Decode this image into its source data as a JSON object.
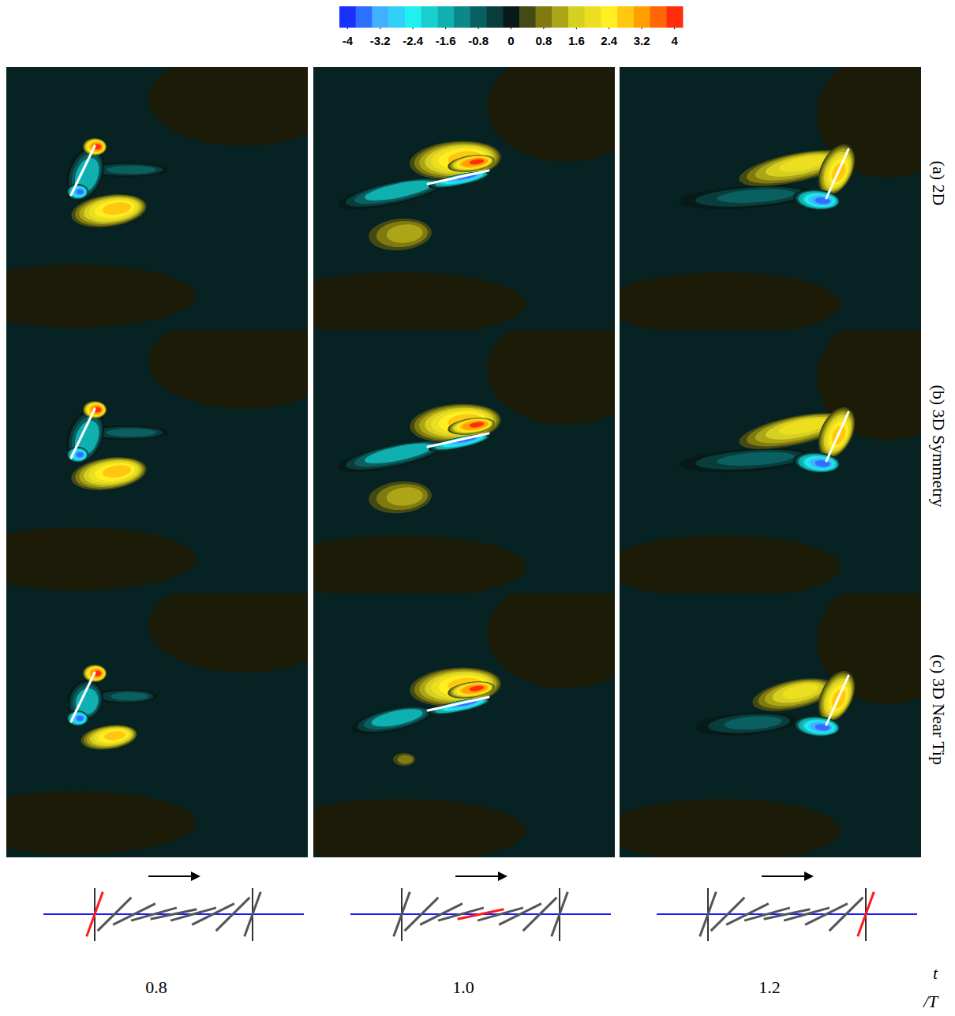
{
  "chart_data": {
    "type": "contour",
    "colorbar": {
      "range": [
        -4.2,
        4.2
      ],
      "step": 0.4,
      "ticks": [
        -4,
        -3.2,
        -2.4,
        -1.6,
        -0.8,
        0,
        0.8,
        1.6,
        2.4,
        3.2,
        4
      ]
    },
    "rows": [
      "(a) 2D",
      "(b) 3D Symmetry",
      "(c) 3D Near Tip"
    ],
    "columns": [
      0.8,
      {
        "value": 1,
        "label": "1.0"
      },
      1.2
    ],
    "x_label": "t/T"
  }
}
